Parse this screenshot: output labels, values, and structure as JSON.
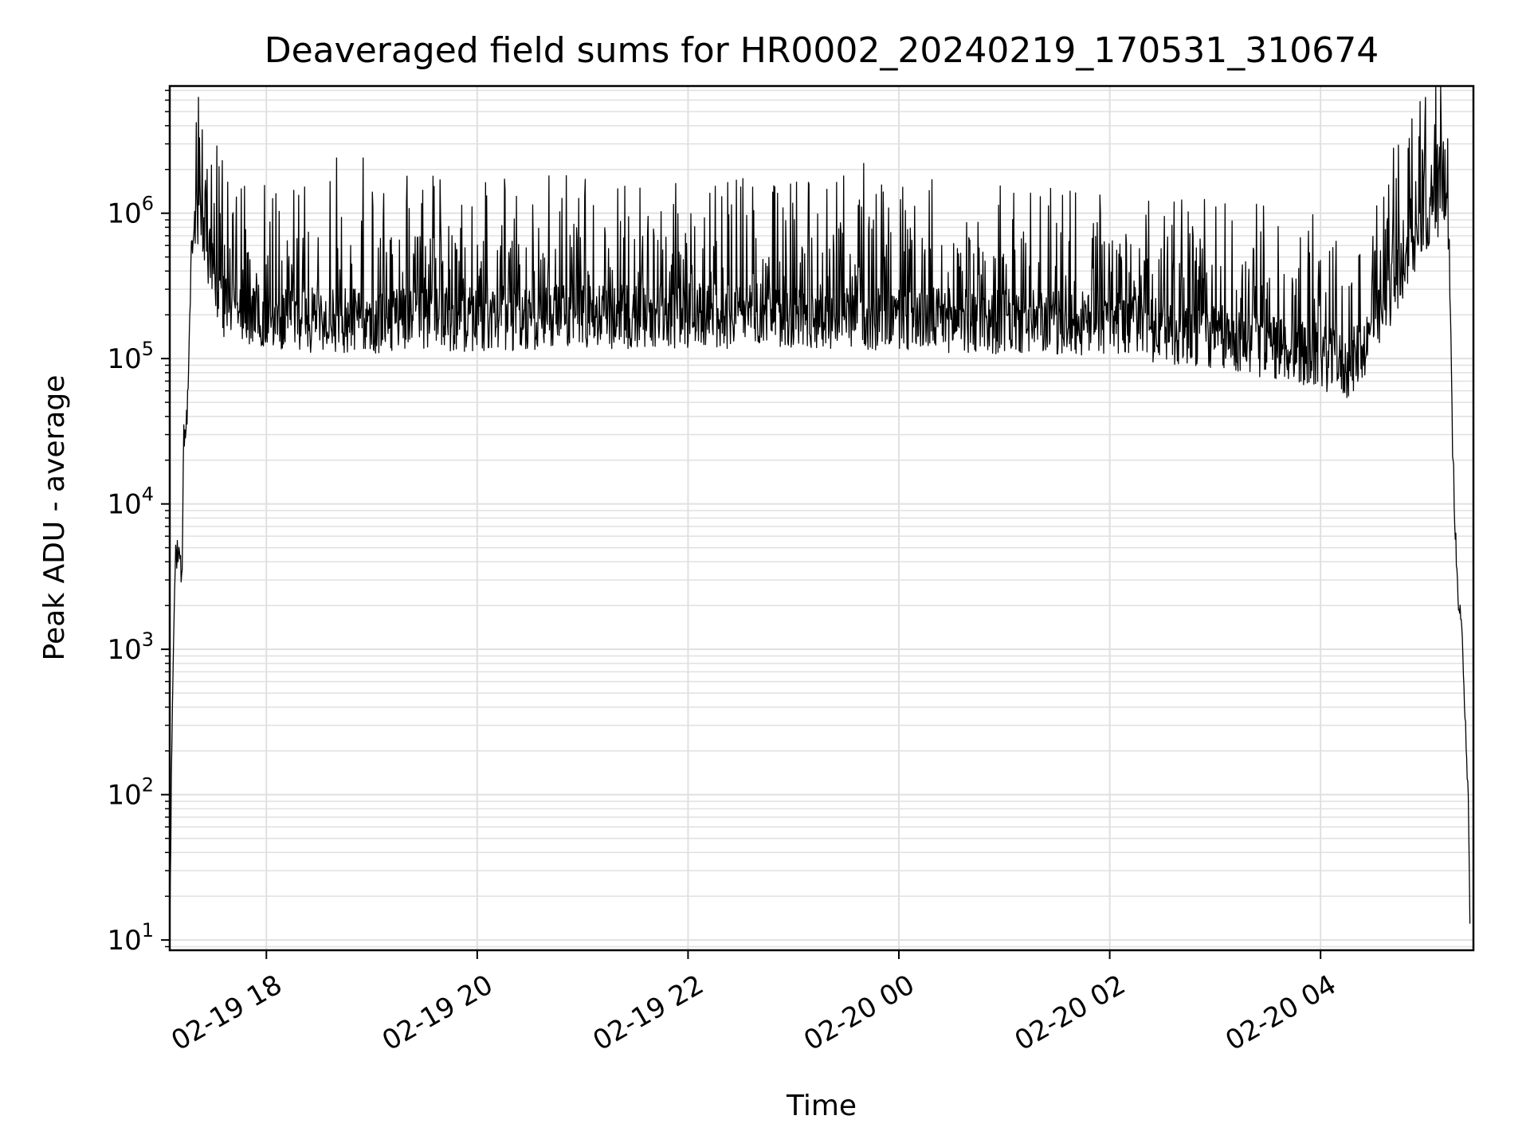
{
  "chart_data": {
    "type": "line",
    "title": "Deaveraged field sums for HR0002_20240219_170531_310674",
    "xlabel": "Time",
    "ylabel": "Peak ADU - average",
    "yscale": "log",
    "ylim": [
      8.5,
      7500000
    ],
    "xlim": [
      "2024-02-19 17:05",
      "2024-02-20 05:27"
    ],
    "grid": true,
    "line_color": "#000000",
    "grid_color": "#e0e0e0",
    "x_ticks": [
      {
        "value": "2024-02-19 18:00",
        "label": "02-19 18"
      },
      {
        "value": "2024-02-19 20:00",
        "label": "02-19 20"
      },
      {
        "value": "2024-02-19 22:00",
        "label": "02-19 22"
      },
      {
        "value": "2024-02-20 00:00",
        "label": "02-20 00"
      },
      {
        "value": "2024-02-20 02:00",
        "label": "02-20 02"
      },
      {
        "value": "2024-02-20 04:00",
        "label": "02-20 04"
      }
    ],
    "y_ticks": [
      {
        "value": 10,
        "base": "10",
        "exp": "1"
      },
      {
        "value": 100,
        "base": "10",
        "exp": "2"
      },
      {
        "value": 1000,
        "base": "10",
        "exp": "3"
      },
      {
        "value": 10000,
        "base": "10",
        "exp": "4"
      },
      {
        "value": 100000,
        "base": "10",
        "exp": "5"
      },
      {
        "value": 1000000,
        "base": "10",
        "exp": "6"
      }
    ],
    "series": [
      {
        "envelope": [
          [
            "2024-02-19 17:05",
            10
          ],
          [
            "2024-02-19 17:06",
            150
          ],
          [
            "2024-02-19 17:07",
            900
          ],
          [
            "2024-02-19 17:08",
            4000
          ],
          [
            "2024-02-19 17:10",
            5000
          ],
          [
            "2024-02-19 17:12",
            3000
          ],
          [
            "2024-02-19 17:13",
            30000
          ],
          [
            "2024-02-19 17:15",
            40000
          ],
          [
            "2024-02-19 17:17",
            400000
          ],
          [
            "2024-02-19 17:20",
            900000
          ],
          [
            "2024-02-19 17:25",
            700000
          ],
          [
            "2024-02-19 17:35",
            250000
          ],
          [
            "2024-02-19 18:00",
            200000
          ],
          [
            "2024-02-19 19:00",
            190000
          ],
          [
            "2024-02-19 20:00",
            200000
          ],
          [
            "2024-02-19 22:00",
            210000
          ],
          [
            "2024-02-20 00:00",
            200000
          ],
          [
            "2024-02-20 02:00",
            180000
          ],
          [
            "2024-02-20 03:00",
            150000
          ],
          [
            "2024-02-20 04:00",
            110000
          ],
          [
            "2024-02-20 04:15",
            90000
          ],
          [
            "2024-02-20 04:30",
            160000
          ],
          [
            "2024-02-20 04:45",
            400000
          ],
          [
            "2024-02-20 05:00",
            900000
          ],
          [
            "2024-02-20 05:10",
            1400000
          ],
          [
            "2024-02-20 05:13",
            900000
          ],
          [
            "2024-02-20 05:15",
            30000
          ],
          [
            "2024-02-20 05:17",
            5000
          ],
          [
            "2024-02-20 05:18",
            2500
          ],
          [
            "2024-02-20 05:21",
            1000
          ],
          [
            "2024-02-20 05:24",
            100
          ],
          [
            "2024-02-20 05:25",
            12
          ]
        ],
        "spikes": [
          [
            "2024-02-19 17:20",
            4200000
          ],
          [
            "2024-02-19 17:22",
            3300000
          ],
          [
            "2024-02-19 17:35",
            2300000
          ],
          [
            "2024-02-19 18:40",
            2400000
          ],
          [
            "2024-02-19 18:55",
            2400000
          ],
          [
            "2024-02-19 19:20",
            1800000
          ],
          [
            "2024-02-19 19:35",
            1800000
          ],
          [
            "2024-02-19 23:40",
            2200000
          ],
          [
            "2024-02-20 04:50",
            2800000
          ],
          [
            "2024-02-20 05:10",
            3100000
          ]
        ]
      }
    ]
  }
}
